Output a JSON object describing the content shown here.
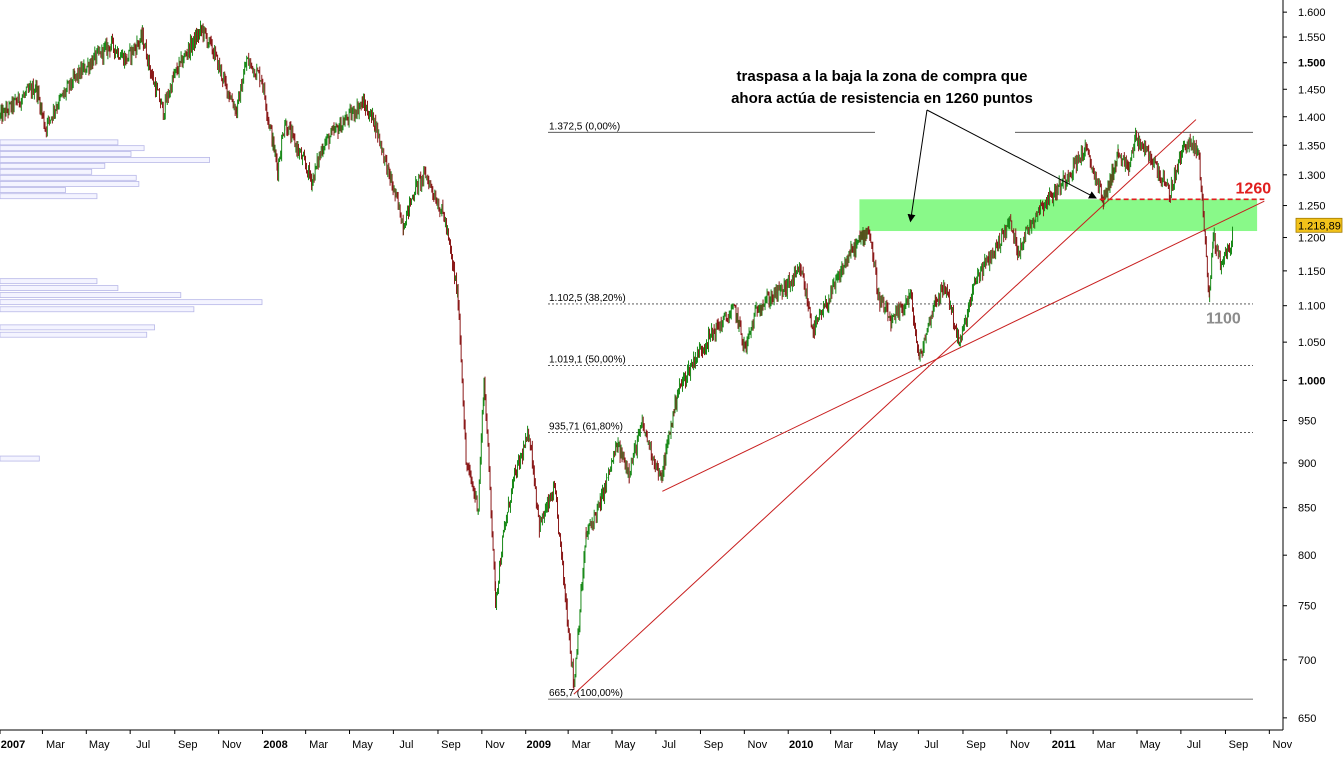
{
  "chart_data": {
    "type": "line",
    "title": "",
    "xlabel": "",
    "ylabel": "",
    "y_scale": "log",
    "ylim": [
      640,
      1625
    ],
    "xlim": [
      "2007-01-01",
      "2011-11-20"
    ],
    "grid": false,
    "x_ticks": [
      {
        "date": "2007-01-01",
        "label": "2007",
        "bold": true
      },
      {
        "date": "2007-03-01",
        "label": "Mar",
        "bold": false
      },
      {
        "date": "2007-05-01",
        "label": "May",
        "bold": false
      },
      {
        "date": "2007-07-01",
        "label": "Jul",
        "bold": false
      },
      {
        "date": "2007-09-01",
        "label": "Sep",
        "bold": false
      },
      {
        "date": "2007-11-01",
        "label": "Nov",
        "bold": false
      },
      {
        "date": "2008-01-01",
        "label": "2008",
        "bold": true
      },
      {
        "date": "2008-03-01",
        "label": "Mar",
        "bold": false
      },
      {
        "date": "2008-05-01",
        "label": "May",
        "bold": false
      },
      {
        "date": "2008-07-01",
        "label": "Jul",
        "bold": false
      },
      {
        "date": "2008-09-01",
        "label": "Sep",
        "bold": false
      },
      {
        "date": "2008-11-01",
        "label": "Nov",
        "bold": false
      },
      {
        "date": "2009-01-01",
        "label": "2009",
        "bold": true
      },
      {
        "date": "2009-03-01",
        "label": "Mar",
        "bold": false
      },
      {
        "date": "2009-05-01",
        "label": "May",
        "bold": false
      },
      {
        "date": "2009-07-01",
        "label": "Jul",
        "bold": false
      },
      {
        "date": "2009-09-01",
        "label": "Sep",
        "bold": false
      },
      {
        "date": "2009-11-01",
        "label": "Nov",
        "bold": false
      },
      {
        "date": "2010-01-01",
        "label": "2010",
        "bold": true
      },
      {
        "date": "2010-03-01",
        "label": "Mar",
        "bold": false
      },
      {
        "date": "2010-05-01",
        "label": "May",
        "bold": false
      },
      {
        "date": "2010-07-01",
        "label": "Jul",
        "bold": false
      },
      {
        "date": "2010-09-01",
        "label": "Sep",
        "bold": false
      },
      {
        "date": "2010-11-01",
        "label": "Nov",
        "bold": false
      },
      {
        "date": "2011-01-01",
        "label": "2011",
        "bold": true
      },
      {
        "date": "2011-03-01",
        "label": "Mar",
        "bold": false
      },
      {
        "date": "2011-05-01",
        "label": "May",
        "bold": false
      },
      {
        "date": "2011-07-01",
        "label": "Jul",
        "bold": false
      },
      {
        "date": "2011-09-01",
        "label": "Sep",
        "bold": false
      },
      {
        "date": "2011-11-01",
        "label": "Nov",
        "bold": false
      }
    ],
    "y_ticks": [
      {
        "value": 1600,
        "label": "1.600",
        "bold": false
      },
      {
        "value": 1550,
        "label": "1.550",
        "bold": false
      },
      {
        "value": 1500,
        "label": "1.500",
        "bold": true
      },
      {
        "value": 1450,
        "label": "1.450",
        "bold": false
      },
      {
        "value": 1400,
        "label": "1.400",
        "bold": false
      },
      {
        "value": 1350,
        "label": "1.350",
        "bold": false
      },
      {
        "value": 1300,
        "label": "1.300",
        "bold": false
      },
      {
        "value": 1250,
        "label": "1.250",
        "bold": false
      },
      {
        "value": 1200,
        "label": "1.200",
        "bold": false
      },
      {
        "value": 1150,
        "label": "1.150",
        "bold": false
      },
      {
        "value": 1100,
        "label": "1.100",
        "bold": false
      },
      {
        "value": 1050,
        "label": "1.050",
        "bold": false
      },
      {
        "value": 1000,
        "label": "1.000",
        "bold": true
      },
      {
        "value": 950,
        "label": "950",
        "bold": false
      },
      {
        "value": 900,
        "label": "900",
        "bold": false
      },
      {
        "value": 850,
        "label": "850",
        "bold": false
      },
      {
        "value": 800,
        "label": "800",
        "bold": false
      },
      {
        "value": 750,
        "label": "750",
        "bold": false
      },
      {
        "value": 700,
        "label": "700",
        "bold": false
      },
      {
        "value": 650,
        "label": "650",
        "bold": false
      }
    ],
    "series": [
      {
        "color": "#1a8a1a",
        "down_color": "#8b1a1a",
        "points": [
          [
            "2007-01-01",
            1400
          ],
          [
            "2007-01-25",
            1428
          ],
          [
            "2007-02-20",
            1455
          ],
          [
            "2007-03-05",
            1380
          ],
          [
            "2007-03-20",
            1420
          ],
          [
            "2007-04-15",
            1470
          ],
          [
            "2007-05-10",
            1505
          ],
          [
            "2007-06-05",
            1535
          ],
          [
            "2007-06-25",
            1505
          ],
          [
            "2007-07-18",
            1550
          ],
          [
            "2007-08-01",
            1470
          ],
          [
            "2007-08-16",
            1410
          ],
          [
            "2007-08-31",
            1475
          ],
          [
            "2007-09-20",
            1525
          ],
          [
            "2007-10-09",
            1565
          ],
          [
            "2007-10-25",
            1520
          ],
          [
            "2007-11-10",
            1460
          ],
          [
            "2007-11-26",
            1410
          ],
          [
            "2007-12-10",
            1505
          ],
          [
            "2007-12-31",
            1470
          ],
          [
            "2008-01-10",
            1390
          ],
          [
            "2008-01-22",
            1310
          ],
          [
            "2008-02-01",
            1390
          ],
          [
            "2008-02-20",
            1340
          ],
          [
            "2008-03-10",
            1290
          ],
          [
            "2008-03-25",
            1350
          ],
          [
            "2008-04-15",
            1380
          ],
          [
            "2008-05-19",
            1425
          ],
          [
            "2008-06-05",
            1390
          ],
          [
            "2008-06-25",
            1300
          ],
          [
            "2008-07-15",
            1220
          ],
          [
            "2008-08-01",
            1280
          ],
          [
            "2008-08-15",
            1300
          ],
          [
            "2008-09-10",
            1230
          ],
          [
            "2008-09-29",
            1110
          ],
          [
            "2008-10-10",
            900
          ],
          [
            "2008-10-27",
            850
          ],
          [
            "2008-11-04",
            1000
          ],
          [
            "2008-11-20",
            755
          ],
          [
            "2008-12-01",
            820
          ],
          [
            "2008-12-15",
            880
          ],
          [
            "2009-01-06",
            935
          ],
          [
            "2009-01-20",
            830
          ],
          [
            "2009-02-10",
            870
          ],
          [
            "2009-02-25",
            760
          ],
          [
            "2009-03-09",
            677
          ],
          [
            "2009-03-26",
            820
          ],
          [
            "2009-04-15",
            855
          ],
          [
            "2009-05-08",
            920
          ],
          [
            "2009-05-25",
            890
          ],
          [
            "2009-06-12",
            945
          ],
          [
            "2009-07-08",
            880
          ],
          [
            "2009-07-31",
            985
          ],
          [
            "2009-08-25",
            1030
          ],
          [
            "2009-09-20",
            1065
          ],
          [
            "2009-10-19",
            1095
          ],
          [
            "2009-11-02",
            1040
          ],
          [
            "2009-11-20",
            1100
          ],
          [
            "2009-12-28",
            1125
          ],
          [
            "2010-01-19",
            1150
          ],
          [
            "2010-02-05",
            1065
          ],
          [
            "2010-02-25",
            1105
          ],
          [
            "2010-03-25",
            1170
          ],
          [
            "2010-04-23",
            1215
          ],
          [
            "2010-05-07",
            1110
          ],
          [
            "2010-05-25",
            1075
          ],
          [
            "2010-06-20",
            1115
          ],
          [
            "2010-07-02",
            1025
          ],
          [
            "2010-07-25",
            1110
          ],
          [
            "2010-08-09",
            1125
          ],
          [
            "2010-08-27",
            1045
          ],
          [
            "2010-09-20",
            1140
          ],
          [
            "2010-10-15",
            1180
          ],
          [
            "2010-11-05",
            1225
          ],
          [
            "2010-11-16",
            1180
          ],
          [
            "2010-12-15",
            1245
          ],
          [
            "2011-01-10",
            1275
          ],
          [
            "2011-02-18",
            1343
          ],
          [
            "2011-03-16",
            1258
          ],
          [
            "2011-04-05",
            1335
          ],
          [
            "2011-04-18",
            1305
          ],
          [
            "2011-04-29",
            1363
          ],
          [
            "2011-05-25",
            1320
          ],
          [
            "2011-06-15",
            1268
          ],
          [
            "2011-07-07",
            1355
          ],
          [
            "2011-07-25",
            1340
          ],
          [
            "2011-08-04",
            1200
          ],
          [
            "2011-08-08",
            1119
          ],
          [
            "2011-08-10",
            1120
          ],
          [
            "2011-08-15",
            1205
          ],
          [
            "2011-08-25",
            1162
          ],
          [
            "2011-09-08",
            1185
          ],
          [
            "2011-09-12",
            1218.89
          ]
        ]
      }
    ],
    "last_price": {
      "value": 1218.89,
      "label": "1.218,89",
      "color": "#f2c21a"
    },
    "fibonacci_levels": [
      {
        "value": 1372.5,
        "label": "1.372,5 (0,00%)",
        "style": "solid"
      },
      {
        "value": 1102.5,
        "label": "1.102,5 (38,20%)",
        "style": "dashed"
      },
      {
        "value": 1019.1,
        "label": "1.019,1 (50,00%)",
        "style": "dashed"
      },
      {
        "value": 935.71,
        "label": "935,71 (61,80%)",
        "style": "dashed"
      },
      {
        "value": 665.7,
        "label": "665,7 (100,00%)",
        "style": "solid"
      }
    ],
    "trendlines": [
      {
        "from": [
          "2009-03-09",
          670
        ],
        "to": [
          "2011-07-22",
          1395
        ],
        "color": "#c81e1e"
      },
      {
        "from": [
          "2009-07-10",
          868
        ],
        "to": [
          "2011-10-25",
          1257
        ],
        "color": "#c81e1e"
      }
    ],
    "zone": {
      "from": "2010-04-10",
      "to": "2011-10-15",
      "low": 1210,
      "high": 1260,
      "color": "#7cf87c"
    },
    "resistance": {
      "value": 1260,
      "from": "2011-03-10",
      "to": "2011-10-25",
      "label": "1260",
      "color": "#e01e1e"
    },
    "support_label": {
      "value": 1100,
      "label": "1100",
      "color": "#8c8c8c"
    },
    "annotation": {
      "lines": [
        "traspasa a la baja la zona de compra que",
        "ahora actúa de resistencia en 1260 puntos"
      ],
      "arrow_targets": [
        {
          "date": "2010-06-20",
          "value": 1225
        },
        {
          "date": "2011-03-05",
          "value": 1262
        }
      ]
    },
    "volume_profile": [
      {
        "value": 1355,
        "strength": 0.45
      },
      {
        "value": 1345,
        "strength": 0.55
      },
      {
        "value": 1335,
        "strength": 0.5
      },
      {
        "value": 1325,
        "strength": 0.8
      },
      {
        "value": 1315,
        "strength": 0.4
      },
      {
        "value": 1305,
        "strength": 0.35
      },
      {
        "value": 1295,
        "strength": 0.52
      },
      {
        "value": 1285,
        "strength": 0.53
      },
      {
        "value": 1275,
        "strength": 0.25
      },
      {
        "value": 1265,
        "strength": 0.37
      },
      {
        "value": 1135,
        "strength": 0.37
      },
      {
        "value": 1125,
        "strength": 0.45
      },
      {
        "value": 1115,
        "strength": 0.69
      },
      {
        "value": 1105,
        "strength": 1.0
      },
      {
        "value": 1095,
        "strength": 0.74
      },
      {
        "value": 1070,
        "strength": 0.59
      },
      {
        "value": 1060,
        "strength": 0.56
      },
      {
        "value": 905,
        "strength": 0.15
      }
    ]
  }
}
